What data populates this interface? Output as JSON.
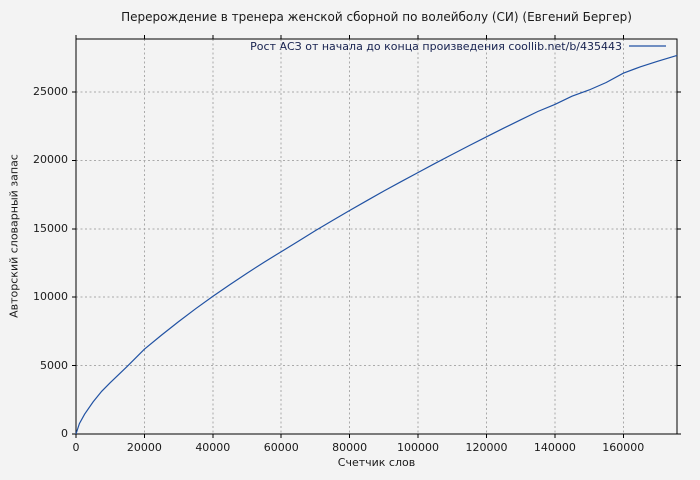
{
  "window": {
    "background": "#f3f3f3"
  },
  "chart_data": {
    "type": "line",
    "title": "Перерождение в тренера женской сборной по волейболу (СИ) (Евгений Бергер)",
    "xlabel": "Счетчик слов",
    "ylabel": "Авторский словарный запас",
    "xlim": [
      0,
      175700
    ],
    "ylim": [
      0,
      28880
    ],
    "x_ticks": [
      0,
      20000,
      40000,
      60000,
      80000,
      100000,
      120000,
      140000,
      160000
    ],
    "y_ticks": [
      0,
      5000,
      10000,
      15000,
      20000,
      25000
    ],
    "grid": true,
    "legend_position": "top-right-inside",
    "colors": {
      "line": "#2152a3",
      "grid": "#aaaaaa",
      "axis": "#000000",
      "text": "#1a1a1a",
      "legend_text": "#16214f",
      "background": "#f3f3f3"
    },
    "series": [
      {
        "name": "Рост АСЗ от начала до конца произведения coollib.net/b/435443",
        "color": "#2152a3",
        "points": [
          [
            0,
            0
          ],
          [
            1000,
            760
          ],
          [
            2500,
            1450
          ],
          [
            5000,
            2350
          ],
          [
            7500,
            3120
          ],
          [
            10000,
            3750
          ],
          [
            15000,
            4950
          ],
          [
            20000,
            6200
          ],
          [
            25000,
            7230
          ],
          [
            30000,
            8220
          ],
          [
            35000,
            9160
          ],
          [
            40000,
            10060
          ],
          [
            45000,
            10920
          ],
          [
            50000,
            11760
          ],
          [
            55000,
            12560
          ],
          [
            60000,
            13330
          ],
          [
            65000,
            14100
          ],
          [
            70000,
            14870
          ],
          [
            75000,
            15610
          ],
          [
            80000,
            16340
          ],
          [
            85000,
            17060
          ],
          [
            90000,
            17770
          ],
          [
            95000,
            18450
          ],
          [
            100000,
            19120
          ],
          [
            105000,
            19790
          ],
          [
            110000,
            20440
          ],
          [
            115000,
            21090
          ],
          [
            120000,
            21730
          ],
          [
            125000,
            22360
          ],
          [
            130000,
            22970
          ],
          [
            135000,
            23580
          ],
          [
            140000,
            24100
          ],
          [
            145000,
            24700
          ],
          [
            150000,
            25150
          ],
          [
            155000,
            25700
          ],
          [
            160000,
            26380
          ],
          [
            165000,
            26850
          ],
          [
            170000,
            27250
          ],
          [
            175700,
            27680
          ]
        ]
      }
    ]
  }
}
